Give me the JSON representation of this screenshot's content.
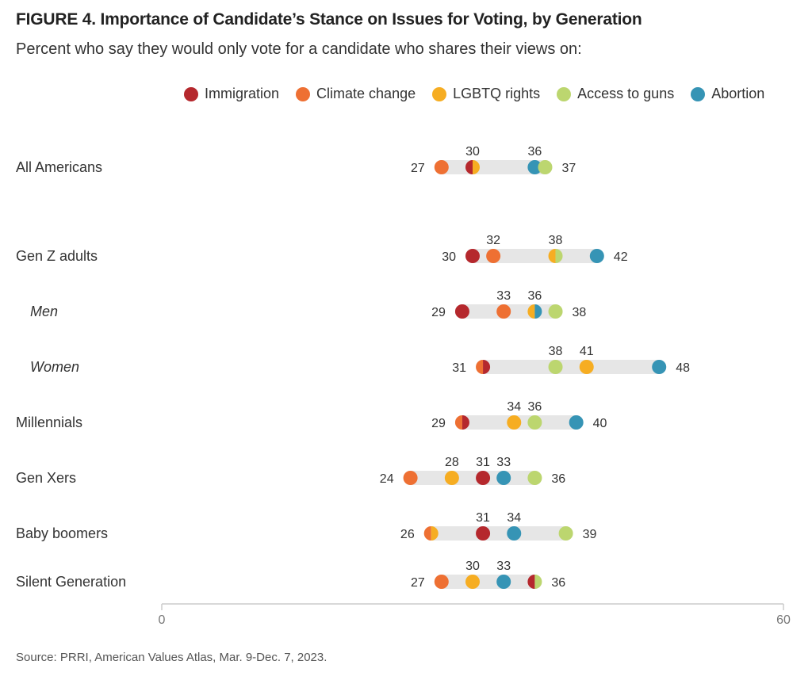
{
  "title": "FIGURE 4. Importance of Candidate’s Stance on Issues for Voting, by Generation",
  "subtitle": "Percent who say they would only vote for a candidate who shares their views on:",
  "source": "Source: PRRI, American Values Atlas, Mar. 9-Dec. 7, 2023.",
  "colors": {
    "Immigration": "#b5282d",
    "Climate change": "#ee7033",
    "LGBTQ rights": "#f6ad22",
    "Access to guns": "#bcd66f",
    "Abortion": "#3694b5",
    "track": "#e6e6e6",
    "axis": "#cccccc"
  },
  "chart_data": {
    "type": "scatter",
    "orientation": "horizontal-dot-plot",
    "xlim": [
      0,
      60
    ],
    "xticks": [
      "0",
      "60"
    ],
    "legend_position": "top",
    "series_names": [
      "Immigration",
      "Climate change",
      "LGBTQ rights",
      "Access to guns",
      "Abortion"
    ],
    "rows": [
      {
        "label": "All Americans",
        "italic": false,
        "values": {
          "Immigration": 30,
          "Climate change": 27,
          "LGBTQ rights": 30,
          "Access to guns": 37,
          "Abortion": 36
        },
        "labels": [
          {
            "text": "27",
            "value": 27,
            "pos": "left"
          },
          {
            "text": "30",
            "value": 30,
            "pos": "above"
          },
          {
            "text": "36",
            "value": 36,
            "pos": "above"
          },
          {
            "text": "37",
            "value": 37,
            "pos": "right"
          }
        ]
      },
      {
        "label": "Gen Z adults",
        "italic": false,
        "values": {
          "Immigration": 30,
          "Climate change": 32,
          "LGBTQ rights": 38,
          "Access to guns": 38,
          "Abortion": 42
        },
        "labels": [
          {
            "text": "30",
            "value": 30,
            "pos": "left"
          },
          {
            "text": "32",
            "value": 32,
            "pos": "above"
          },
          {
            "text": "38",
            "value": 38,
            "pos": "above"
          },
          {
            "text": "42",
            "value": 42,
            "pos": "right"
          }
        ]
      },
      {
        "label": "Men",
        "italic": true,
        "values": {
          "Immigration": 29,
          "Climate change": 33,
          "LGBTQ rights": 36,
          "Access to guns": 38,
          "Abortion": 36
        },
        "labels": [
          {
            "text": "29",
            "value": 29,
            "pos": "left"
          },
          {
            "text": "33",
            "value": 33,
            "pos": "above"
          },
          {
            "text": "36",
            "value": 36,
            "pos": "above"
          },
          {
            "text": "38",
            "value": 38,
            "pos": "right"
          }
        ]
      },
      {
        "label": "Women",
        "italic": true,
        "values": {
          "Immigration": 31,
          "Climate change": 31,
          "LGBTQ rights": 41,
          "Access to guns": 38,
          "Abortion": 48
        },
        "labels": [
          {
            "text": "31",
            "value": 31,
            "pos": "left"
          },
          {
            "text": "38",
            "value": 38,
            "pos": "above"
          },
          {
            "text": "41",
            "value": 41,
            "pos": "above"
          },
          {
            "text": "48",
            "value": 48,
            "pos": "right"
          }
        ]
      },
      {
        "label": "Millennials",
        "italic": false,
        "values": {
          "Immigration": 29,
          "Climate change": 29,
          "LGBTQ rights": 34,
          "Access to guns": 36,
          "Abortion": 40
        },
        "labels": [
          {
            "text": "29",
            "value": 29,
            "pos": "left"
          },
          {
            "text": "34",
            "value": 34,
            "pos": "above"
          },
          {
            "text": "36",
            "value": 36,
            "pos": "above"
          },
          {
            "text": "40",
            "value": 40,
            "pos": "right"
          }
        ]
      },
      {
        "label": "Gen Xers",
        "italic": false,
        "values": {
          "Immigration": 31,
          "Climate change": 24,
          "LGBTQ rights": 28,
          "Access to guns": 36,
          "Abortion": 33
        },
        "labels": [
          {
            "text": "24",
            "value": 24,
            "pos": "left"
          },
          {
            "text": "28",
            "value": 28,
            "pos": "above"
          },
          {
            "text": "31",
            "value": 31,
            "pos": "above"
          },
          {
            "text": "33",
            "value": 33,
            "pos": "above"
          },
          {
            "text": "36",
            "value": 36,
            "pos": "right"
          }
        ]
      },
      {
        "label": "Baby boomers",
        "italic": false,
        "values": {
          "Immigration": 31,
          "Climate change": 26,
          "LGBTQ rights": 26,
          "Access to guns": 39,
          "Abortion": 34
        },
        "labels": [
          {
            "text": "26",
            "value": 26,
            "pos": "left"
          },
          {
            "text": "31",
            "value": 31,
            "pos": "above"
          },
          {
            "text": "34",
            "value": 34,
            "pos": "above"
          },
          {
            "text": "39",
            "value": 39,
            "pos": "right"
          }
        ]
      },
      {
        "label": "Silent Generation",
        "italic": false,
        "values": {
          "Immigration": 36,
          "Climate change": 27,
          "LGBTQ rights": 30,
          "Access to guns": 36,
          "Abortion": 33
        },
        "labels": [
          {
            "text": "27",
            "value": 27,
            "pos": "left"
          },
          {
            "text": "30",
            "value": 30,
            "pos": "above"
          },
          {
            "text": "33",
            "value": 33,
            "pos": "above"
          },
          {
            "text": "36",
            "value": 36,
            "pos": "right"
          }
        ]
      }
    ]
  }
}
